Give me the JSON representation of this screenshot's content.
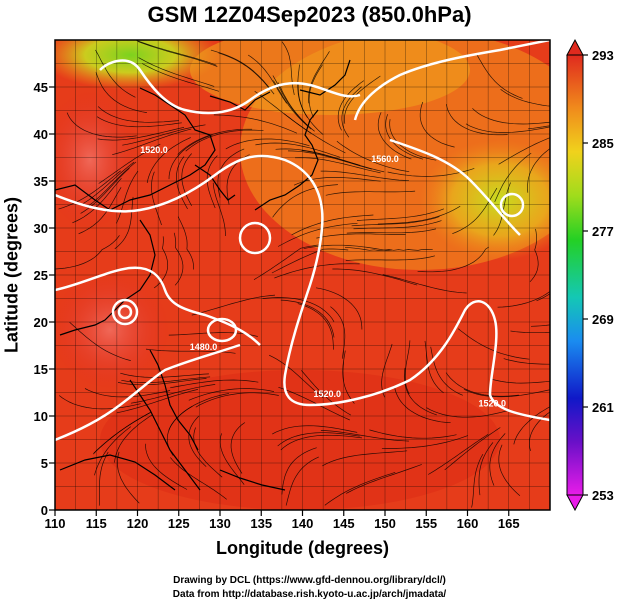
{
  "title": "GSM 12Z04Sep2023 (850.0hPa)",
  "xaxis": {
    "label": "Longitude (degrees)",
    "range": [
      110,
      170
    ],
    "ticks": [
      "110",
      "115",
      "120",
      "125",
      "130",
      "135",
      "140",
      "145",
      "150",
      "155",
      "160",
      "165"
    ]
  },
  "yaxis": {
    "label": "Latitude (degrees)",
    "range": [
      0,
      50
    ],
    "ticks": [
      "0",
      "5",
      "10",
      "15",
      "20",
      "25",
      "30",
      "35",
      "40",
      "45"
    ]
  },
  "colorbar": {
    "range": [
      253,
      293
    ],
    "ticks": [
      "253",
      "261",
      "269",
      "277",
      "285",
      "293"
    ]
  },
  "contour_labels": [
    {
      "text": "1520.0",
      "lon": 122,
      "lat": 38
    },
    {
      "text": "1560.0",
      "lon": 150,
      "lat": 37
    },
    {
      "text": "1480.0",
      "lon": 128,
      "lat": 17
    },
    {
      "text": "1520.0",
      "lon": 143,
      "lat": 12
    },
    {
      "text": "1520.0",
      "lon": 163,
      "lat": 11
    }
  ],
  "credits": {
    "line1": "Drawing by DCL (https://www.gfd-dennou.org/library/dcl/)",
    "line2": "Data from http://database.rish.kyoto-u.ac.jp/arch/jmadata/"
  },
  "colors": {
    "warm": "#e8441a",
    "hot": "#dc2a14",
    "mid": "#f08a1c",
    "cool": "#c8dc1e",
    "contour": "#ffffff",
    "coast": "#000000"
  }
}
